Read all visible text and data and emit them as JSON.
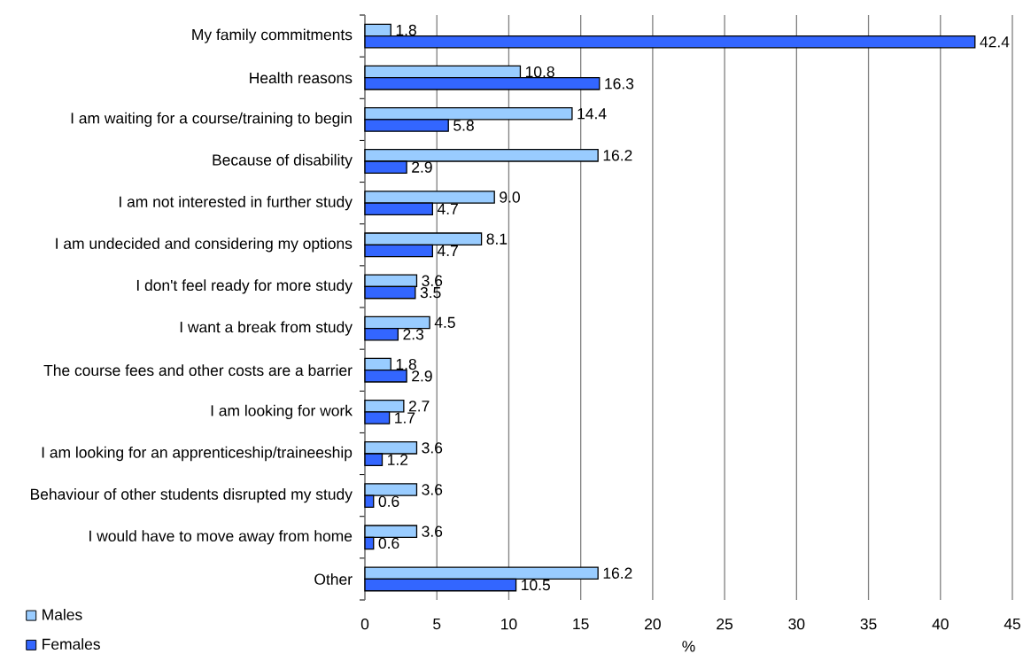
{
  "chart_data": {
    "type": "bar",
    "orientation": "horizontal",
    "categories": [
      "My family commitments",
      "Health reasons",
      "I am waiting for a course/training to begin",
      "Because of disability",
      "I am not interested in further study",
      "I am undecided and considering my options",
      "I don't feel ready for more study",
      "I want a break from study",
      "The course fees and other costs are a barrier",
      "I am looking for work",
      "I am looking for an apprenticeship/traineeship",
      "Behaviour of other students disrupted my study",
      "I would have to move away from home",
      "Other"
    ],
    "series": [
      {
        "name": "Males",
        "color": "#99ccff",
        "values": [
          1.8,
          10.8,
          14.4,
          16.2,
          9.0,
          8.1,
          3.6,
          4.5,
          1.8,
          2.7,
          3.6,
          3.6,
          3.6,
          16.2
        ],
        "value_labels": [
          "1.8",
          "10.8",
          "14.4",
          "16.2",
          "9.0",
          "8.1",
          "3.6",
          "4.5",
          "1.8",
          "2.7",
          "3.6",
          "3.6",
          "3.6",
          "16.2"
        ]
      },
      {
        "name": "Females",
        "color": "#3366ff",
        "values": [
          42.4,
          16.3,
          5.8,
          2.9,
          4.7,
          4.7,
          3.5,
          2.3,
          2.9,
          1.7,
          1.2,
          0.6,
          0.6,
          10.5
        ],
        "value_labels": [
          "42.4",
          "16.3",
          "5.8",
          "2.9",
          "4.7",
          "4.7",
          "3.5",
          "2.3",
          "2.9",
          "1.7",
          "1.2",
          "0.6",
          "0.6",
          "10.5"
        ]
      }
    ],
    "xlabel": "%",
    "xlim": [
      0,
      45
    ],
    "xticks": [
      0,
      5,
      10,
      15,
      20,
      25,
      30,
      35,
      40,
      45
    ],
    "grid": "x",
    "legend": "bottom left"
  }
}
